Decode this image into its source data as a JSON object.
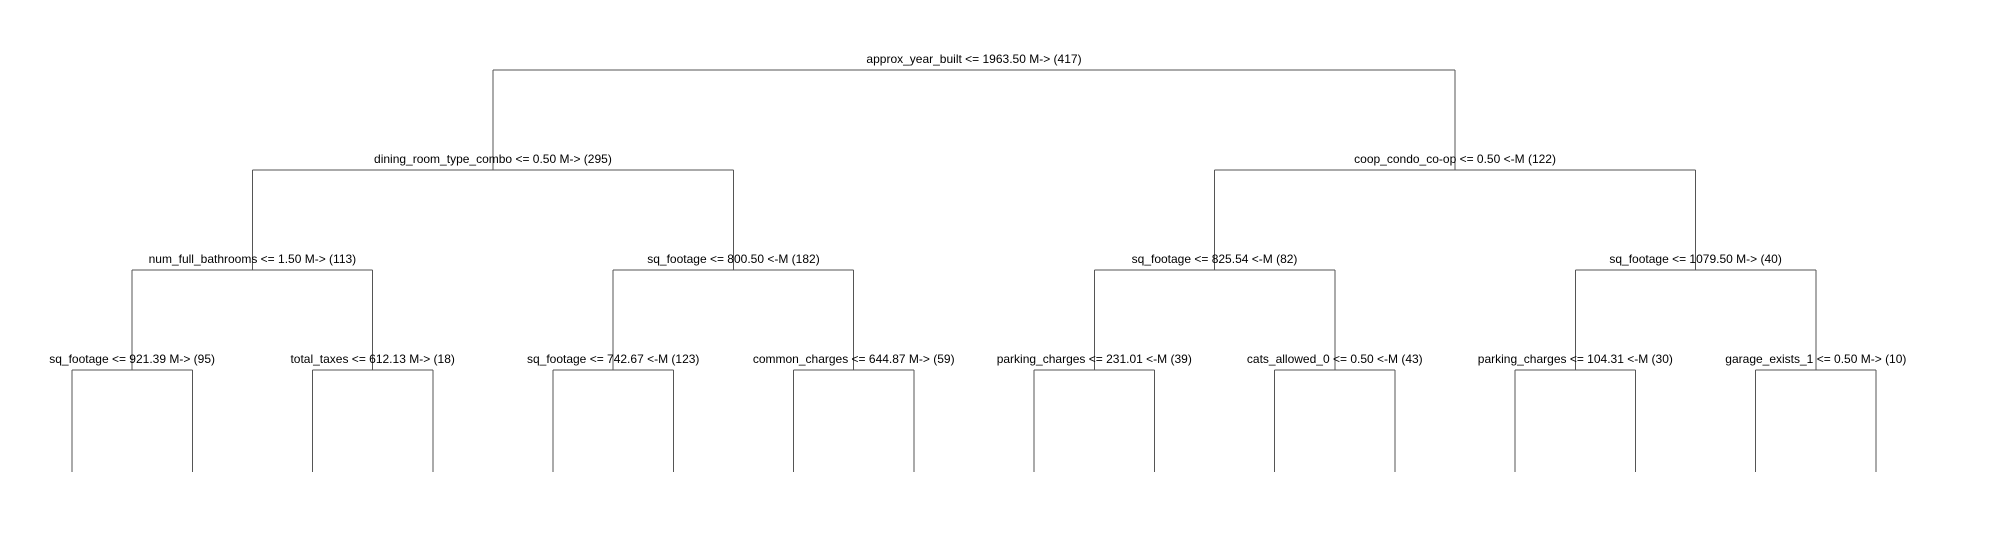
{
  "tree": {
    "root": {
      "label": "approx_year_built <= 1963.50 M-> (417)",
      "left": {
        "label": "dining_room_type_combo <= 0.50 M-> (295)",
        "left": {
          "label": "num_full_bathrooms <= 1.50 M-> (113)",
          "left": {
            "label": "sq_footage <= 921.39 M-> (95)"
          },
          "right": {
            "label": "total_taxes <= 612.13 M-> (18)"
          }
        },
        "right": {
          "label": "sq_footage <= 800.50 <-M (182)",
          "left": {
            "label": "sq_footage <= 742.67 <-M (123)"
          },
          "right": {
            "label": "common_charges <= 644.87 M-> (59)"
          }
        }
      },
      "right": {
        "label": "coop_condo_co-op <= 0.50 <-M (122)",
        "left": {
          "label": "sq_footage <= 825.54 <-M (82)",
          "left": {
            "label": "parking_charges <= 231.01 <-M (39)"
          },
          "right": {
            "label": "cats_allowed_0 <= 0.50 <-M (43)"
          }
        },
        "right": {
          "label": "sq_footage <= 1079.50 M-> (40)",
          "left": {
            "label": "parking_charges <= 104.31 <-M (30)"
          },
          "right": {
            "label": "garage_exists_1 <= 0.50 M-> (10)"
          }
        }
      }
    }
  }
}
